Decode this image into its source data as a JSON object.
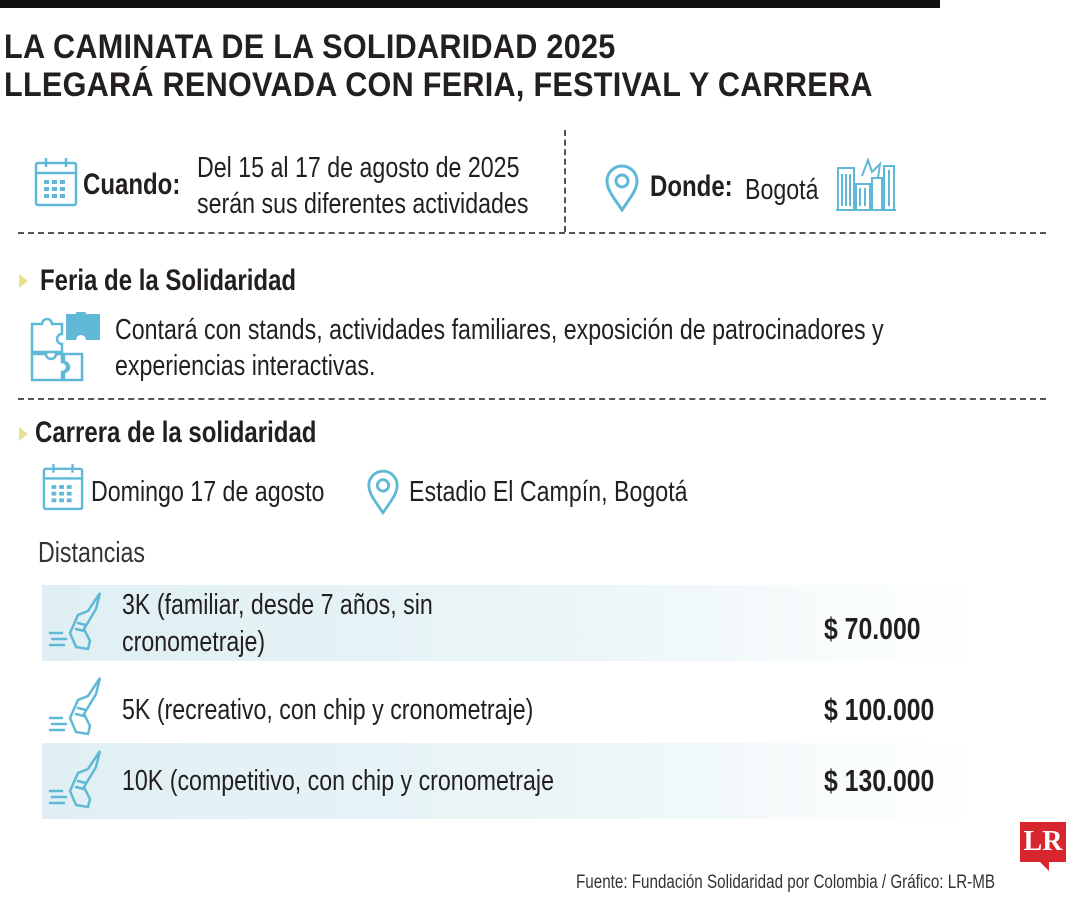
{
  "title": {
    "line1": "LA CAMINATA DE LA SOLIDARIDAD 2025",
    "line2": "LLEGARÁ RENOVADA CON FERIA, FESTIVAL Y CARRERA"
  },
  "when": {
    "label": "Cuando:",
    "line1": "Del 15 al 17 de agosto de 2025",
    "line2": "serán sus diferentes actividades",
    "icon": "calendar-icon"
  },
  "where": {
    "label": "Donde:",
    "value": "Bogotá",
    "icon": "location-pin-icon",
    "city_icon": "city-skyline-icon"
  },
  "feria": {
    "heading": "Feria de la Solidaridad",
    "line1": "Contará con stands, actividades familiares, exposición de patrocinadores y",
    "line2": "experiencias interactivas.",
    "icon": "puzzle-icon"
  },
  "carrera": {
    "heading": "Carrera de la solidaridad",
    "date": "Domingo 17 de agosto",
    "place": "Estadio El Campín, Bogotá",
    "distances_label": "Distancias",
    "rows": [
      {
        "line1": "3K (familiar, desde 7 años, sin",
        "line2": "cronometraje)",
        "price": "$ 70.000",
        "icon": "running-shoe-icon"
      },
      {
        "line1": "5K (recreativo, con chip y cronometraje)",
        "price": "$ 100.000",
        "icon": "running-shoe-icon"
      },
      {
        "line1": "10K (competitivo, con chip y cronometraje",
        "price": "$ 130.000",
        "icon": "running-shoe-icon"
      }
    ]
  },
  "source": "Fuente: Fundación Solidaridad  por Colombia / Gráfico: LR-MB",
  "logo_text": "LR",
  "colors": {
    "icon_blue": "#5fb9d6",
    "row_shade": "#dfeff3",
    "bullet_yellow": "#e9e093",
    "logo_red": "#d8262e"
  }
}
